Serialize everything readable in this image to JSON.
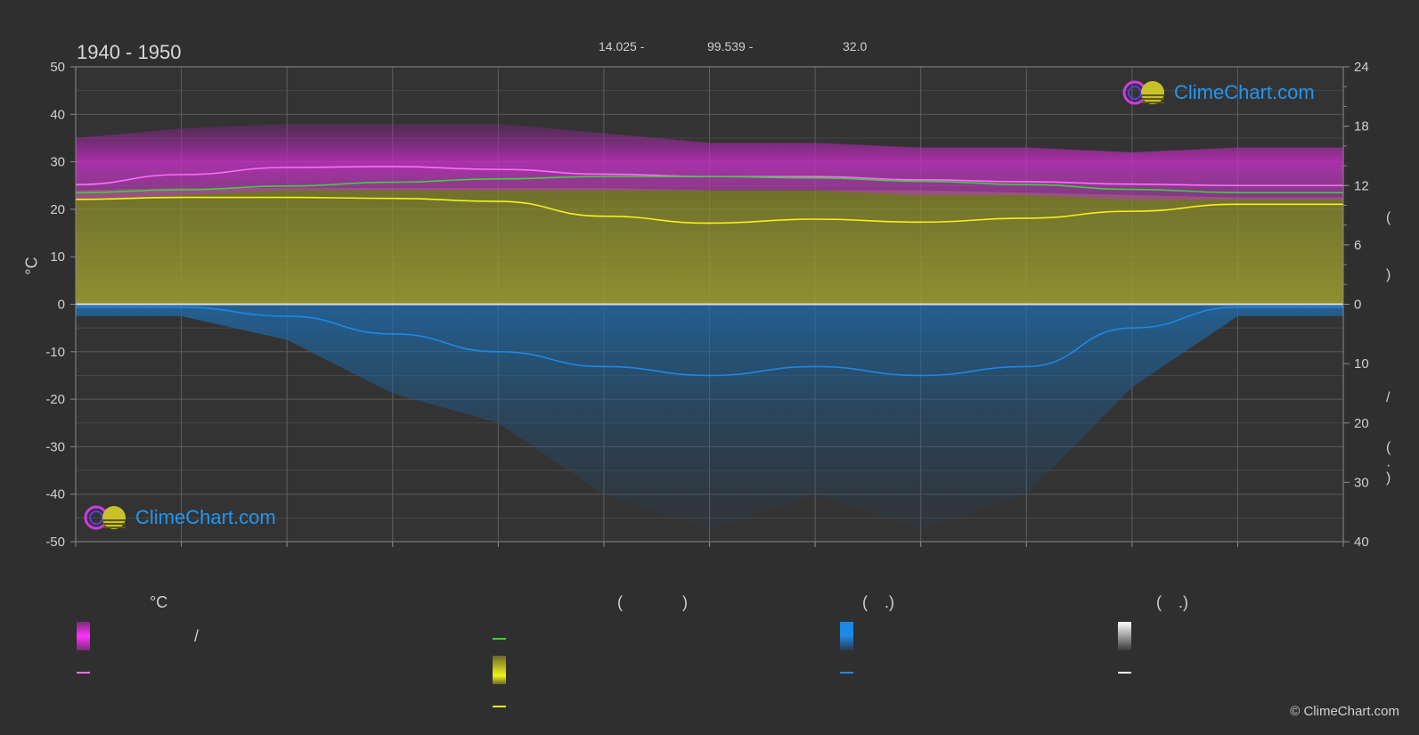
{
  "header": {
    "period": "1940 - 1950",
    "coords": [
      "14.025 -",
      "99.539 -",
      "32.0"
    ]
  },
  "axes": {
    "left_unit": "°C",
    "right_glyphs": [
      "(",
      ")",
      "(",
      ")",
      "/",
      "(",
      "·",
      ")"
    ]
  },
  "logo": {
    "text": "ClimeChart.com"
  },
  "legend": {
    "headers": [
      "°C",
      "(",
      ")",
      "(",
      ".)",
      "(",
      ".)"
    ],
    "slash": "/"
  },
  "copyright": "© ClimeChart.com",
  "colors": {
    "max_temp": "#ff6cff",
    "mean_temp": "#3ad23a",
    "sunshine": "#f2f21a",
    "precip": "#1e88e5",
    "snow": "#ffffff",
    "accent": "#2196f3"
  },
  "chart_data": {
    "type": "line",
    "x": [
      0,
      1,
      2,
      3,
      4,
      5,
      6,
      7,
      8,
      9,
      10,
      11,
      12
    ],
    "left_axis": {
      "label": "°C",
      "ylim": [
        -50,
        50
      ],
      "ticks": [
        50,
        40,
        30,
        20,
        10,
        0,
        -10,
        -20,
        -30,
        -40,
        -50
      ]
    },
    "right_axis": {
      "upper": {
        "ylim": [
          0,
          24
        ],
        "ticks": [
          24,
          18,
          12,
          6,
          0
        ]
      },
      "lower": {
        "ylim": [
          0,
          40
        ],
        "ticks": [
          0,
          10,
          20,
          30,
          40
        ]
      }
    },
    "series": [
      {
        "axis": "left",
        "values": [
          25.2,
          27.3,
          28.8,
          29.0,
          28.4,
          27.4,
          26.9,
          26.9,
          26.2,
          25.8,
          25.3,
          25.0,
          25.0
        ]
      },
      {
        "axis": "left",
        "values": [
          23.5,
          24.1,
          24.9,
          25.7,
          26.4,
          26.9,
          26.9,
          26.6,
          25.9,
          25.2,
          24.2,
          23.5,
          23.5
        ]
      },
      {
        "axis": "right_upper",
        "values": [
          10.6,
          10.8,
          10.8,
          10.7,
          10.4,
          8.9,
          8.2,
          8.6,
          8.3,
          8.7,
          9.4,
          10.1,
          10.1
        ]
      },
      {
        "axis": "right_lower",
        "values": [
          0.5,
          0.5,
          2.0,
          5.0,
          8.0,
          10.5,
          12.0,
          10.5,
          12.0,
          10.5,
          4.0,
          0.5,
          0.5
        ]
      }
    ],
    "ranges": {
      "max_temp_band": {
        "upper": [
          35,
          37,
          38,
          38,
          38,
          36,
          34,
          34,
          33,
          33,
          32,
          33,
          33
        ],
        "lower": [
          22,
          23,
          24,
          24,
          24,
          24,
          24,
          24,
          23,
          23,
          22,
          22,
          22
        ]
      }
    },
    "grid": true
  }
}
